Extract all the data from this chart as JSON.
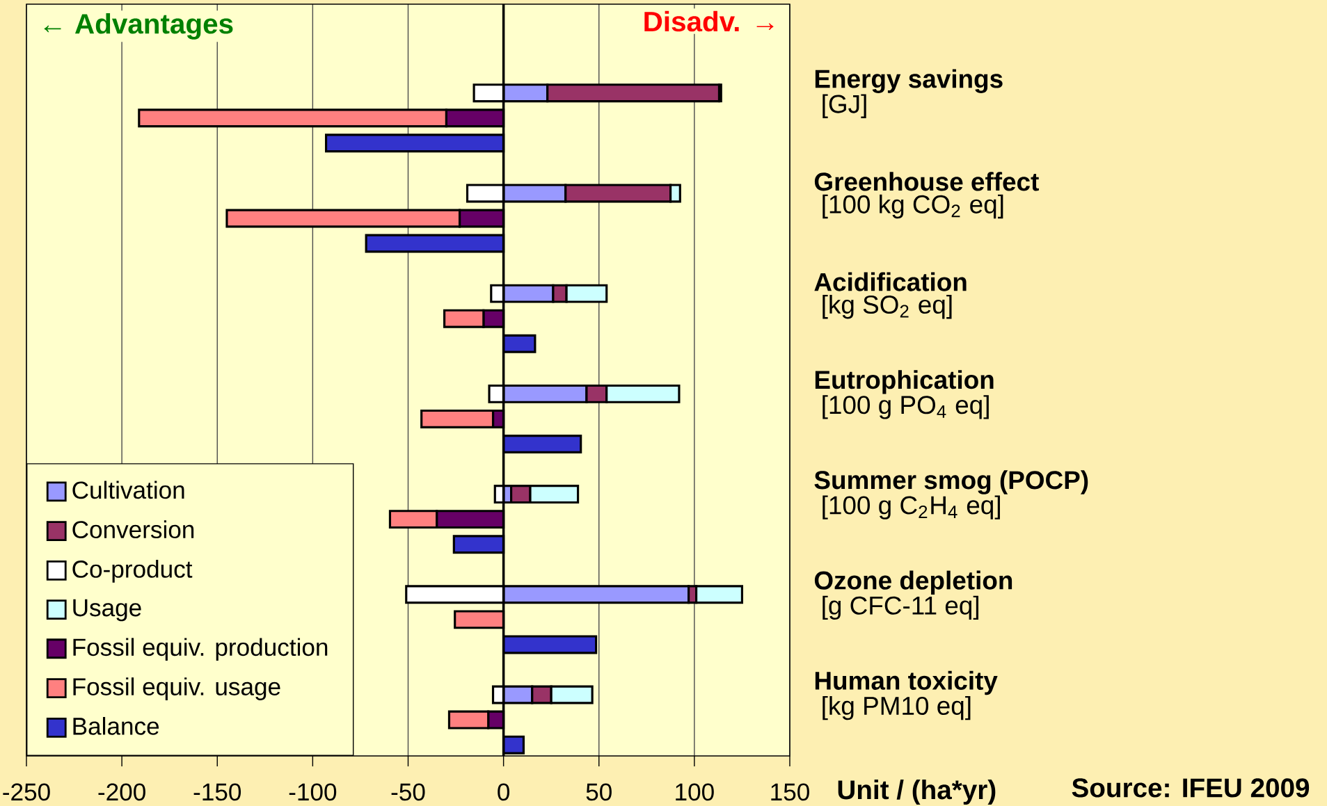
{
  "chart_data": {
    "type": "bar",
    "orientation": "horizontal",
    "stacked": true,
    "categories": [
      "Energy savings",
      "[GJ]",
      null,
      null,
      "Greenhouse effect",
      "[100 kg CO$_{2}$ eq]",
      null,
      null,
      "Acidification",
      "[kg SO$_{2}$ eq]",
      null,
      null,
      "Eutrophication",
      "[100 g PO$_{4}$ eq]",
      null,
      null,
      "Summer smog (POCP)",
      "[100 g C$_{2}$H$_{4}$ eq]",
      null,
      null,
      "Ozone depletion",
      "[g CFC-11 eq]",
      null,
      null,
      "Human toxicity",
      "[kg PM10 eq]",
      null
    ],
    "series": [
      {
        "name": "Cultivation",
        "color": "#9999ff",
        "values": [
          23,
          null,
          null,
          null,
          32.5,
          null,
          null,
          null,
          26,
          null,
          null,
          null,
          43.5,
          null,
          null,
          null,
          4,
          null,
          null,
          null,
          97,
          null,
          null,
          null,
          15,
          null,
          null
        ]
      },
      {
        "name": "Conversion",
        "color": "#993366",
        "values": [
          90,
          null,
          null,
          null,
          55,
          null,
          null,
          null,
          7,
          null,
          null,
          null,
          10.5,
          null,
          null,
          null,
          10,
          null,
          null,
          null,
          4,
          null,
          null,
          null,
          10,
          null,
          null
        ]
      },
      {
        "name": "Co-product",
        "color": "#ffffff",
        "values": [
          -15.5,
          null,
          null,
          null,
          -19,
          null,
          null,
          null,
          -6.5,
          null,
          null,
          null,
          -7.5,
          null,
          null,
          null,
          -4.5,
          null,
          null,
          null,
          -51,
          null,
          null,
          null,
          -5.5,
          null,
          null
        ]
      },
      {
        "name": "Usage",
        "color": "#ccffff",
        "values": [
          1,
          null,
          null,
          null,
          5,
          null,
          null,
          null,
          21,
          null,
          null,
          null,
          38,
          null,
          null,
          null,
          25,
          null,
          null,
          null,
          24,
          null,
          null,
          null,
          21.5,
          null,
          null
        ]
      },
      {
        "name": "Fossil equiv. production",
        "color": "#660066",
        "values": [
          null,
          -30,
          null,
          null,
          null,
          -23,
          null,
          null,
          null,
          -10.5,
          null,
          null,
          null,
          -5.5,
          null,
          null,
          null,
          -35,
          null,
          null,
          null,
          null,
          null,
          null,
          null,
          -8,
          null
        ]
      },
      {
        "name": "Fossil equiv. usage",
        "color": "#ff8080",
        "values": [
          null,
          -161,
          null,
          null,
          null,
          -122,
          null,
          null,
          null,
          -20.5,
          null,
          null,
          null,
          -37.5,
          null,
          null,
          null,
          -24.5,
          null,
          null,
          null,
          -25.5,
          null,
          null,
          null,
          -20.5,
          null
        ]
      },
      {
        "name": "Balance",
        "color": "#3333cc",
        "values": [
          null,
          null,
          -93,
          null,
          null,
          null,
          -72,
          null,
          null,
          null,
          16.5,
          null,
          null,
          null,
          40.5,
          null,
          null,
          null,
          -26,
          null,
          null,
          null,
          48.5,
          null,
          null,
          null,
          10.5
        ]
      }
    ],
    "xlim": [
      -250,
      150
    ],
    "xticks": [
      -250,
      -200,
      -150,
      -100,
      -50,
      0,
      50,
      100,
      150
    ],
    "xlabel": "Unit / (ha*yr)",
    "grid": "x",
    "legend": "bottom left",
    "ref_lines": [
      {
        "axis": "x",
        "value": 0
      }
    ],
    "annotations": [
      "← Advantages",
      "Disadv. →",
      "Source: IFEU 2009"
    ]
  }
}
